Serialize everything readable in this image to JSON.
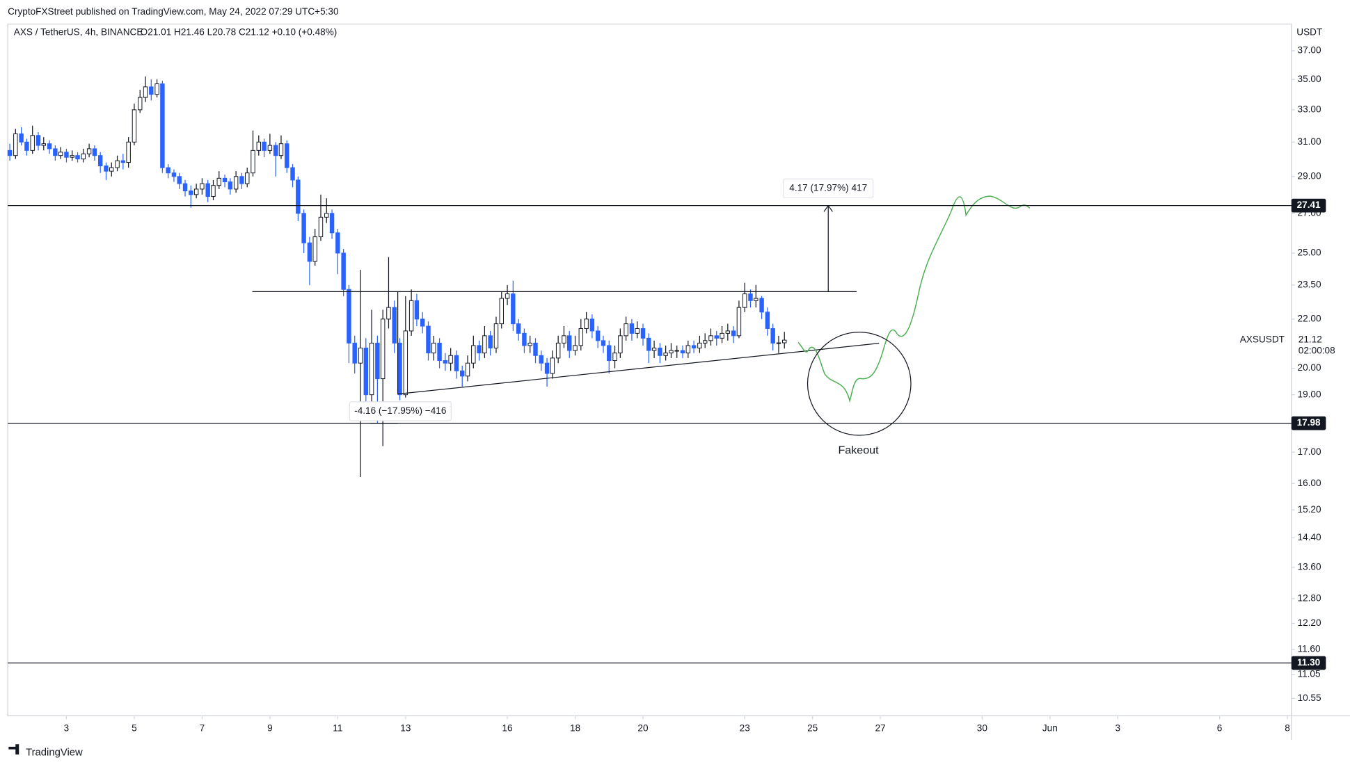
{
  "header": {
    "published": "CryptoFXStreet published on TradingView.com, May 24, 2022 07:29 UTC+5:30",
    "footer": "TradingView"
  },
  "chart_data": {
    "type": "candlestick",
    "symbol": "AXS / TetherUS, 4h, BINANCE",
    "ohlc": "O21.01 H21.46 L20.78 C21.12 +0.10 (+0.48%)",
    "currency": "USDT",
    "log_scale": true,
    "grid": false,
    "up_color": "#ffffff",
    "down_color": "#2962ff",
    "x": [
      1.33,
      1.5,
      1.67,
      1.83,
      2,
      2.17,
      2.33,
      2.5,
      2.67,
      2.83,
      3,
      3.17,
      3.33,
      3.5,
      3.67,
      3.83,
      4,
      4.17,
      4.33,
      4.5,
      4.67,
      4.83,
      5,
      5.17,
      5.33,
      5.5,
      5.67,
      5.83,
      6,
      6.17,
      6.33,
      6.5,
      6.67,
      6.83,
      7,
      7.17,
      7.33,
      7.5,
      7.67,
      7.83,
      8,
      8.17,
      8.33,
      8.5,
      8.67,
      8.83,
      9,
      9.17,
      9.33,
      9.5,
      9.67,
      9.83,
      10,
      10.17,
      10.33,
      10.5,
      10.67,
      10.83,
      11,
      11.17,
      11.33,
      11.5,
      11.67,
      11.83,
      12,
      12.17,
      12.33,
      12.5,
      12.67,
      12.83,
      13,
      13.17,
      13.33,
      13.5,
      13.67,
      13.83,
      14,
      14.17,
      14.33,
      14.5,
      14.67,
      14.83,
      15,
      15.17,
      15.33,
      15.5,
      15.67,
      15.83,
      16,
      16.17,
      16.33,
      16.5,
      16.67,
      16.83,
      17,
      17.17,
      17.33,
      17.5,
      17.67,
      17.83,
      18,
      18.17,
      18.33,
      18.5,
      18.67,
      18.83,
      19,
      19.17,
      19.33,
      19.5,
      19.67,
      19.83,
      20,
      20.17,
      20.33,
      20.5,
      20.67,
      20.83,
      21,
      21.17,
      21.33,
      21.5,
      21.67,
      21.83,
      22,
      22.17,
      22.33,
      22.5,
      22.67,
      22.83,
      23,
      23.17,
      23.33,
      23.5,
      23.67,
      23.83,
      24,
      24.17
    ],
    "open": [
      30.5,
      30.2,
      31.5,
      31.0,
      30.5,
      31.4,
      30.8,
      30.9,
      30.6,
      30.2,
      30.4,
      30.1,
      30.2,
      30.0,
      30.3,
      30.6,
      30.2,
      29.6,
      29.3,
      29.5,
      29.9,
      29.8,
      31.0,
      33.0,
      33.8,
      34.5,
      34.0,
      34.7,
      29.5,
      29.2,
      29.0,
      28.6,
      28.2,
      28.0,
      28.3,
      28.6,
      27.9,
      28.5,
      28.9,
      28.7,
      28.3,
      29.0,
      28.6,
      29.2,
      30.5,
      31.0,
      30.5,
      30.8,
      30.2,
      30.9,
      29.5,
      28.8,
      27.0,
      25.5,
      24.6,
      25.8,
      26.8,
      27.0,
      26.0,
      25.0,
      23.3,
      21.0,
      20.2,
      20.8,
      19.0,
      21.0,
      19.6,
      22.0,
      22.5,
      21.0,
      19.0,
      21.5,
      22.8,
      22.0,
      21.7,
      20.6,
      21.0,
      20.3,
      20.2,
      20.5,
      19.9,
      19.7,
      20.2,
      20.9,
      20.6,
      21.3,
      20.8,
      21.8,
      22.9,
      23.1,
      21.8,
      21.4,
      20.9,
      21.0,
      20.5,
      20.2,
      19.8,
      20.4,
      21.0,
      21.3,
      20.7,
      20.9,
      21.6,
      22.0,
      21.5,
      21.1,
      20.9,
      20.3,
      20.6,
      21.3,
      21.8,
      21.4,
      21.6,
      21.2,
      20.7,
      20.8,
      20.5,
      20.6,
      20.7,
      20.7,
      20.6,
      20.9,
      20.8,
      21.0,
      21.1,
      21.3,
      21.2,
      21.4,
      21.5,
      21.3,
      22.5,
      23.1,
      22.8,
      22.9,
      22.3,
      21.6,
      21.0,
      21.01
    ],
    "high": [
      30.9,
      31.8,
      31.9,
      31.2,
      32.0,
      31.6,
      31.3,
      31.1,
      30.8,
      30.7,
      30.6,
      30.5,
      30.4,
      30.6,
      30.9,
      30.8,
      30.4,
      29.8,
      29.8,
      30.2,
      30.3,
      31.3,
      33.4,
      34.3,
      35.2,
      35.0,
      35.0,
      34.9,
      29.7,
      29.4,
      29.2,
      28.8,
      28.5,
      28.6,
      28.9,
      28.8,
      28.8,
      29.3,
      29.1,
      28.9,
      29.3,
      29.2,
      29.5,
      31.7,
      31.4,
      31.2,
      31.5,
      31.0,
      31.4,
      31.1,
      29.7,
      29.0,
      27.2,
      25.8,
      26.2,
      28.0,
      27.8,
      27.2,
      26.2,
      25.2,
      23.5,
      21.3,
      24.2,
      21.2,
      22.4,
      21.3,
      22.4,
      24.8,
      22.8,
      21.2,
      23.0,
      23.3,
      23.1,
      22.3,
      21.9,
      21.3,
      21.2,
      20.6,
      20.8,
      20.7,
      20.1,
      20.5,
      21.3,
      21.1,
      21.7,
      21.5,
      22.1,
      23.2,
      23.5,
      23.7,
      22.0,
      21.6,
      21.3,
      21.2,
      20.7,
      20.4,
      20.7,
      21.3,
      21.7,
      21.5,
      21.3,
      22.0,
      22.3,
      22.2,
      21.7,
      21.3,
      21.1,
      20.9,
      21.6,
      22.1,
      22.0,
      21.9,
      21.8,
      21.4,
      21.1,
      21.0,
      20.9,
      21.0,
      20.9,
      20.9,
      21.1,
      21.1,
      21.3,
      21.4,
      21.6,
      21.5,
      21.7,
      21.8,
      21.7,
      22.8,
      23.6,
      23.3,
      23.5,
      23.0,
      22.5,
      21.8,
      21.3,
      21.46
    ],
    "low": [
      29.9,
      30.0,
      30.8,
      30.2,
      30.3,
      30.5,
      30.5,
      30.3,
      29.9,
      30.0,
      29.8,
      29.9,
      29.8,
      29.8,
      30.1,
      29.9,
      29.2,
      28.8,
      29.0,
      29.3,
      29.4,
      29.5,
      30.8,
      32.8,
      33.5,
      33.6,
      33.8,
      29.2,
      28.9,
      28.7,
      28.3,
      27.9,
      27.3,
      27.8,
      28.0,
      27.6,
      27.7,
      28.3,
      28.4,
      28.0,
      28.1,
      28.3,
      28.4,
      29.0,
      30.2,
      30.1,
      30.3,
      29.0,
      30.0,
      29.2,
      28.4,
      26.6,
      25.0,
      23.5,
      24.4,
      25.6,
      26.5,
      25.7,
      24.0,
      23.0,
      20.2,
      19.8,
      16.2,
      18.3,
      18.6,
      18.0,
      17.2,
      21.6,
      20.6,
      18.8,
      18.9,
      21.3,
      21.7,
      21.4,
      20.3,
      20.3,
      20.0,
      19.9,
      19.9,
      19.6,
      19.3,
      19.5,
      20.0,
      20.3,
      20.4,
      20.5,
      20.6,
      21.6,
      22.6,
      21.5,
      21.1,
      20.6,
      20.6,
      20.2,
      19.9,
      19.3,
      19.6,
      20.2,
      20.8,
      20.4,
      20.5,
      20.7,
      21.4,
      21.2,
      20.8,
      20.6,
      19.8,
      20.0,
      20.4,
      21.1,
      21.1,
      21.2,
      20.9,
      20.2,
      20.4,
      20.2,
      20.3,
      20.4,
      20.4,
      20.4,
      20.4,
      20.6,
      20.6,
      20.8,
      20.9,
      20.9,
      21.0,
      21.1,
      21.0,
      21.2,
      22.3,
      22.5,
      22.5,
      22.0,
      21.3,
      20.7,
      20.6,
      20.78
    ],
    "close": [
      30.2,
      31.5,
      31.0,
      30.5,
      31.4,
      30.8,
      30.9,
      30.6,
      30.2,
      30.4,
      30.1,
      30.2,
      30.0,
      30.3,
      30.6,
      30.2,
      29.6,
      29.3,
      29.5,
      29.9,
      29.8,
      31.0,
      33.0,
      33.8,
      34.5,
      34.0,
      34.7,
      29.5,
      29.2,
      29.0,
      28.6,
      28.2,
      28.0,
      28.3,
      28.6,
      27.9,
      28.5,
      28.9,
      28.7,
      28.3,
      29.0,
      28.6,
      29.2,
      30.5,
      31.0,
      30.5,
      30.8,
      30.2,
      30.9,
      29.5,
      28.8,
      27.0,
      25.5,
      24.6,
      25.8,
      26.8,
      27.0,
      26.0,
      25.0,
      23.3,
      21.0,
      20.2,
      20.8,
      19.0,
      21.0,
      19.6,
      22.0,
      22.5,
      21.0,
      19.0,
      21.5,
      22.8,
      22.0,
      21.7,
      20.6,
      21.0,
      20.3,
      20.2,
      20.5,
      19.9,
      19.7,
      20.2,
      20.9,
      20.6,
      21.3,
      20.8,
      21.8,
      22.9,
      23.1,
      21.8,
      21.4,
      20.9,
      21.0,
      20.5,
      20.2,
      19.8,
      20.4,
      21.0,
      21.3,
      20.7,
      20.9,
      21.6,
      22.0,
      21.5,
      21.1,
      20.9,
      20.3,
      20.6,
      21.3,
      21.8,
      21.4,
      21.6,
      21.2,
      20.7,
      20.8,
      20.5,
      20.6,
      20.7,
      20.7,
      20.6,
      20.9,
      20.8,
      21.0,
      21.1,
      21.3,
      21.2,
      21.4,
      21.5,
      21.3,
      22.5,
      23.1,
      22.8,
      22.9,
      22.3,
      21.6,
      21.0,
      21.01,
      21.12
    ],
    "xlim": [
      1.27,
      39.12
    ],
    "xticks": [
      3,
      5,
      7,
      9,
      11,
      13,
      16,
      18,
      20,
      23,
      25,
      27,
      30,
      {
        "value": 32,
        "label": "Jun"
      },
      {
        "value": 34,
        "label": "3"
      },
      {
        "value": 37,
        "label": "6"
      },
      {
        "value": 39,
        "label": "8"
      }
    ],
    "ylim": [
      10.2,
      38.96
    ],
    "yticks": [
      {
        "value": 37,
        "label": "37.00"
      },
      {
        "value": 35,
        "label": "35.00"
      },
      {
        "value": 33,
        "label": "33.00"
      },
      {
        "value": 31,
        "label": "31.00"
      },
      {
        "value": 29,
        "label": "29.00"
      },
      {
        "value": 27,
        "label": "27.00"
      },
      {
        "value": 25,
        "label": "25.00"
      },
      {
        "value": 23.5,
        "label": "23.50"
      },
      {
        "value": 22,
        "label": "22.00"
      },
      {
        "value": 20,
        "label": "20.00"
      },
      {
        "value": 19,
        "label": "19.00"
      },
      {
        "value": 17,
        "label": "17.00"
      },
      {
        "value": 16,
        "label": "16.00"
      },
      {
        "value": 15.2,
        "label": "15.20"
      },
      {
        "value": 14.4,
        "label": "14.40"
      },
      {
        "value": 13.6,
        "label": "13.60"
      },
      {
        "value": 12.8,
        "label": "12.80"
      },
      {
        "value": 12.2,
        "label": "12.20"
      },
      {
        "value": 11.6,
        "label": "11.60"
      },
      {
        "value": 11.05,
        "label": "11.05"
      },
      {
        "value": 10.55,
        "label": "10.55"
      }
    ],
    "levels": [
      {
        "value": 27.41,
        "label": "27.41"
      },
      {
        "value": 17.98,
        "label": "17.98"
      },
      {
        "value": 11.3,
        "label": "11.30"
      }
    ],
    "last": {
      "name": "AXSUSDT",
      "value": 21.12,
      "countdown": "02:00:08"
    },
    "annotations": {
      "target_up": "4.17 (17.97%) 417",
      "target_down": "-4.16 (−17.95%) −416",
      "fakeout": "Fakeout"
    }
  }
}
